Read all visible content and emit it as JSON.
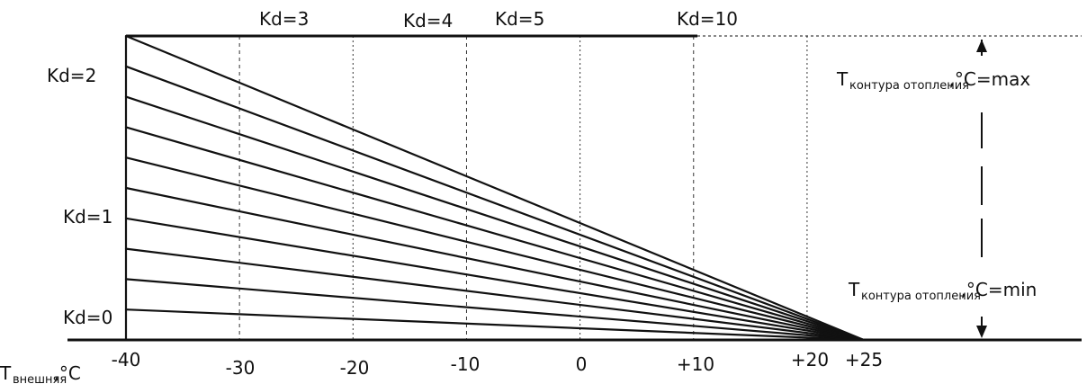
{
  "chart_data": {
    "type": "line",
    "x_ticks": [
      "-40",
      "-30",
      "-20",
      "-10",
      "0",
      "+10",
      "+20",
      "+25"
    ],
    "x_tick_values": [
      -40,
      -30,
      -20,
      -10,
      0,
      10,
      20,
      25
    ],
    "x_origin": 25,
    "x_axis_label": {
      "main": "T",
      "sub": "внешняя",
      "suffix": ",°C"
    },
    "y_axis_label_max": {
      "main": "T",
      "sub": "контура отопления",
      "suffix": ",°C=max"
    },
    "y_axis_label_min": {
      "main": "T",
      "sub": "контура отопления",
      "suffix": ",°C=min"
    },
    "series": [
      {
        "name": "Kd=0",
        "k": 0
      },
      {
        "name": "Kd=1",
        "k": 1
      },
      {
        "name": "Kd=2",
        "k": 2
      },
      {
        "name": "Kd=3",
        "k": 3
      },
      {
        "name": "Kd=4",
        "k": 4
      },
      {
        "name": "Kd=5",
        "k": 5
      },
      {
        "name": "",
        "k": 6
      },
      {
        "name": "",
        "k": 7
      },
      {
        "name": "",
        "k": 8
      },
      {
        "name": "",
        "k": 9
      },
      {
        "name": "Kd=10",
        "k": 10
      }
    ],
    "xlim": [
      -40,
      25
    ],
    "ylim_relative": [
      0,
      1
    ],
    "grid": true,
    "colors": {
      "line": "#111111",
      "grid": "#333333",
      "background": "#ffffff"
    }
  }
}
